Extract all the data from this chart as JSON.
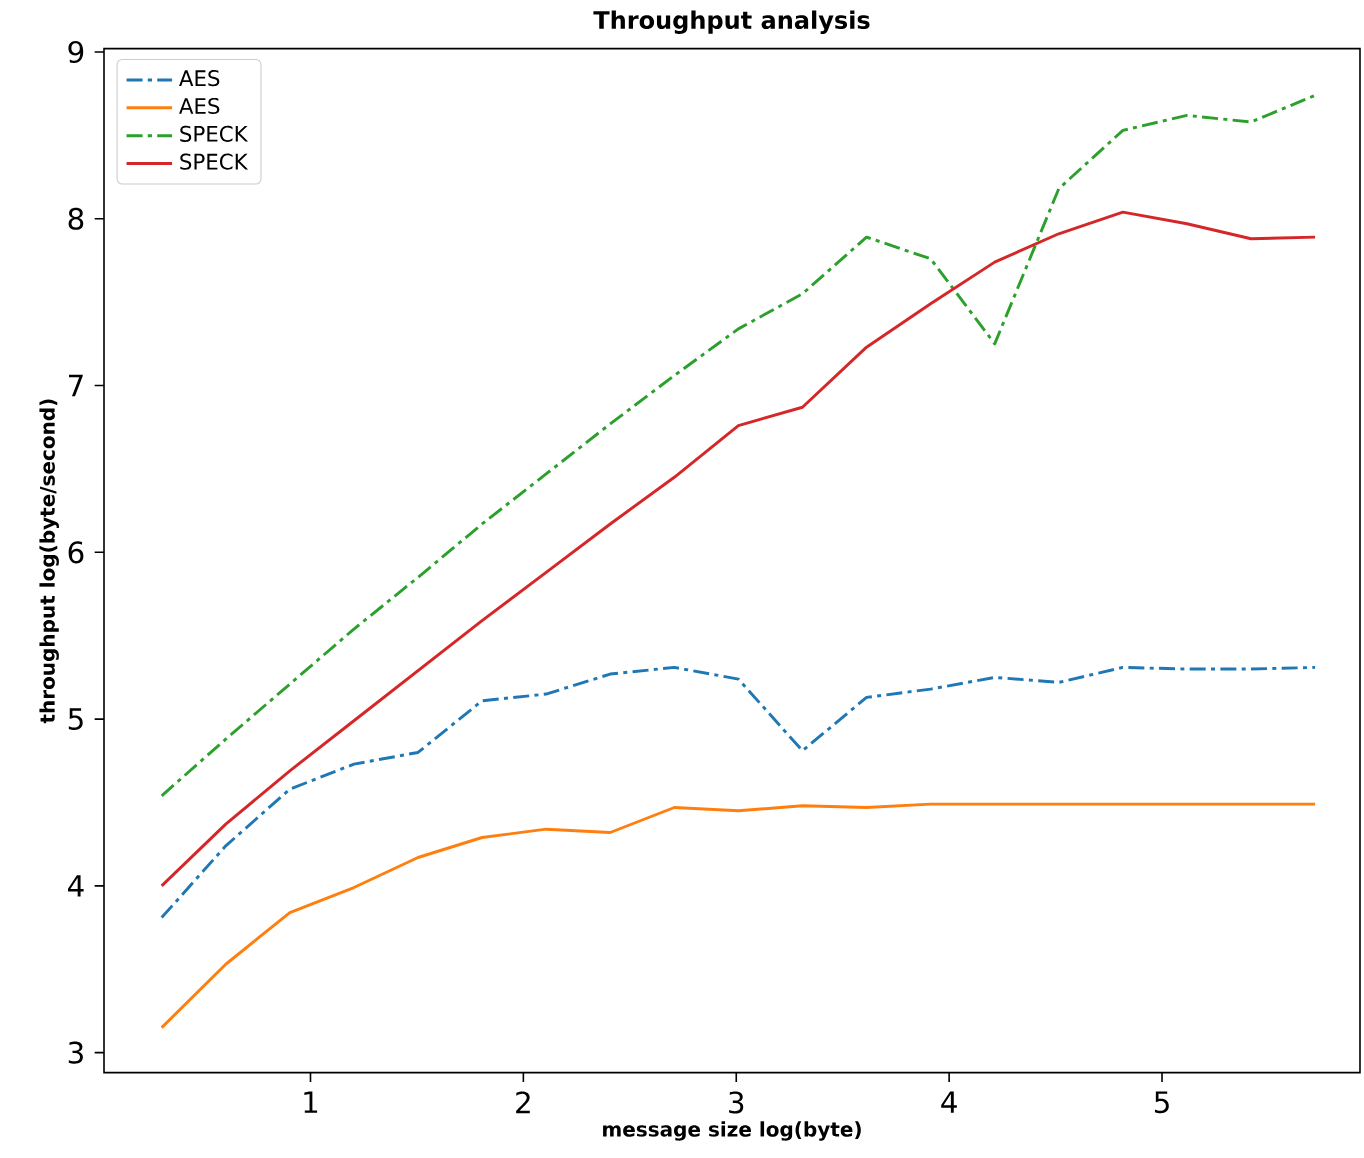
{
  "chart_data": {
    "type": "line",
    "title": "Throughput analysis",
    "xlabel": "message size log(byte)",
    "ylabel": "throughput log(byte/second)",
    "x": [
      0.301,
      0.602,
      0.903,
      1.204,
      1.505,
      1.806,
      2.107,
      2.408,
      2.709,
      3.01,
      3.311,
      3.612,
      3.913,
      4.214,
      4.515,
      4.816,
      5.117,
      5.418,
      5.719
    ],
    "series": [
      {
        "name": "AES",
        "color": "#1f77b4",
        "line_style": "dashdot",
        "values": [
          3.81,
          4.24,
          4.58,
          4.73,
          4.8,
          5.11,
          5.15,
          5.27,
          5.31,
          5.24,
          4.81,
          5.13,
          5.18,
          5.25,
          5.22,
          5.31,
          5.3,
          5.3,
          5.31
        ]
      },
      {
        "name": "AES",
        "color": "#ff7f0e",
        "line_style": "solid",
        "values": [
          3.15,
          3.53,
          3.84,
          3.99,
          4.17,
          4.29,
          4.34,
          4.32,
          4.47,
          4.45,
          4.48,
          4.47,
          4.49,
          4.49,
          4.49,
          4.49,
          4.49,
          4.49,
          4.49
        ]
      },
      {
        "name": "SPECK",
        "color": "#2ca02c",
        "line_style": "dashdot",
        "values": [
          4.54,
          4.88,
          5.21,
          5.54,
          5.85,
          6.17,
          6.47,
          6.77,
          7.06,
          7.34,
          7.55,
          7.89,
          7.76,
          7.25,
          8.18,
          8.53,
          8.62,
          8.58,
          8.74
        ]
      },
      {
        "name": "SPECK",
        "color": "#d62728",
        "line_style": "solid",
        "values": [
          4.0,
          4.37,
          4.69,
          4.99,
          5.29,
          5.59,
          5.88,
          6.17,
          6.45,
          6.76,
          6.87,
          7.23,
          7.49,
          7.74,
          7.91,
          8.04,
          7.97,
          7.88,
          7.89
        ]
      }
    ],
    "xlim": [
      0.03,
      5.93
    ],
    "ylim": [
      2.88,
      9.02
    ],
    "xticks": [
      1,
      2,
      3,
      4,
      5
    ],
    "yticks": [
      3,
      4,
      5,
      6,
      7,
      8,
      9
    ],
    "grid": false,
    "legend": "top left",
    "marker": "none"
  }
}
